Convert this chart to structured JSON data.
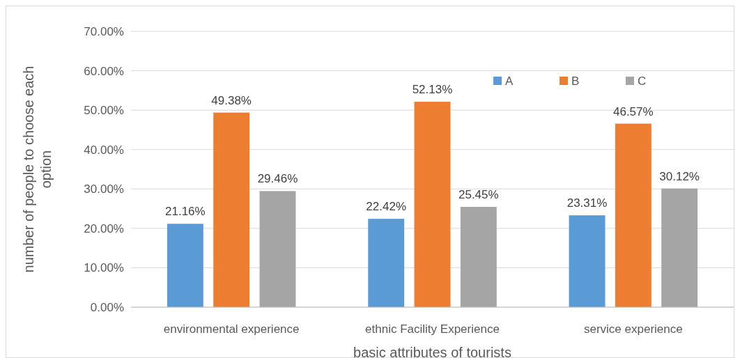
{
  "chart_data": {
    "type": "bar",
    "xlabel": "basic attributes of tourists",
    "ylabel": "number of people to choose each option",
    "categories": [
      "environmental experience",
      "ethnic Facility Experience",
      "service experience"
    ],
    "series": [
      {
        "name": "A",
        "color": "#5b9bd5",
        "values": [
          21.16,
          22.42,
          23.31
        ]
      },
      {
        "name": "B",
        "color": "#ed7d31",
        "values": [
          49.38,
          52.13,
          46.57
        ]
      },
      {
        "name": "C",
        "color": "#a5a5a5",
        "values": [
          29.46,
          25.45,
          30.12
        ]
      }
    ],
    "value_labels": [
      [
        "21.16%",
        "22.42%",
        "23.31%"
      ],
      [
        "49.38%",
        "52.13%",
        "46.57%"
      ],
      [
        "29.46%",
        "25.45%",
        "30.12%"
      ]
    ],
    "ylim": [
      0,
      70
    ],
    "yticks": [
      {
        "value": 0,
        "label": "0.00%"
      },
      {
        "value": 10,
        "label": "10.00%"
      },
      {
        "value": 20,
        "label": "20.00%"
      },
      {
        "value": 30,
        "label": "30.00%"
      },
      {
        "value": 40,
        "label": "40.00%"
      },
      {
        "value": 50,
        "label": "50.00%"
      },
      {
        "value": 60,
        "label": "60.00%"
      },
      {
        "value": 70,
        "label": "70.00%"
      }
    ],
    "grid": "y",
    "legend": "top"
  }
}
